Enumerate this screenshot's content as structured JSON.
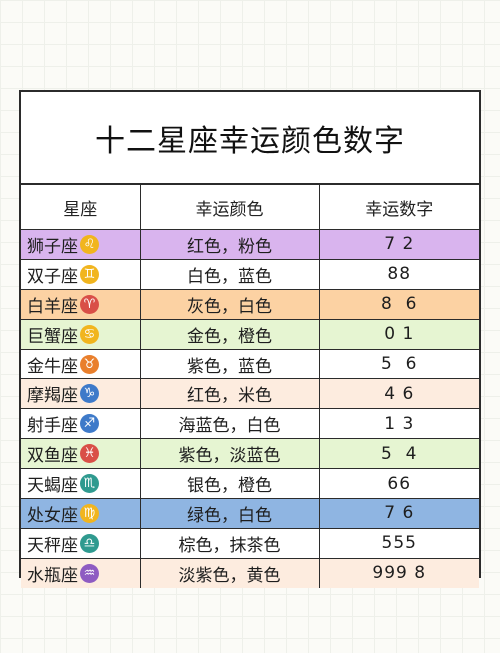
{
  "title": "十二星座幸运颜色数字",
  "headers": [
    "星座",
    "幸运颜色",
    "幸运数字"
  ],
  "rows": [
    {
      "sign": "狮子座",
      "symbol": "♌",
      "icon": "leo-icon",
      "icon_color": "#f1b51e",
      "colors": "红色，粉色",
      "number": "7 2",
      "bg": "#d9b4ee"
    },
    {
      "sign": "双子座",
      "symbol": "♊",
      "icon": "gemini-icon",
      "icon_color": "#f1b51e",
      "colors": "白色，蓝色",
      "number": "88",
      "bg": "#ffffff"
    },
    {
      "sign": "白羊座",
      "symbol": "♈",
      "icon": "aries-icon",
      "icon_color": "#d94f47",
      "colors": "灰色，白色",
      "number": "8  6",
      "bg": "#fcd2a3"
    },
    {
      "sign": "巨蟹座",
      "symbol": "♋",
      "icon": "cancer-icon",
      "icon_color": "#f1b51e",
      "colors": "金色，橙色",
      "number": "0 1",
      "bg": "#e6f5d2"
    },
    {
      "sign": "金牛座",
      "symbol": "♉",
      "icon": "taurus-icon",
      "icon_color": "#e97f2c",
      "colors": "紫色，蓝色",
      "number": "5  6",
      "bg": "#ffffff"
    },
    {
      "sign": "摩羯座",
      "symbol": "♑",
      "icon": "capricorn-icon",
      "icon_color": "#3e7ac9",
      "colors": "红色，米色",
      "number": "4 6",
      "bg": "#fdecdf"
    },
    {
      "sign": "射手座",
      "symbol": "♐",
      "icon": "sagittarius-icon",
      "icon_color": "#3e7ac9",
      "colors": "海蓝色，白色",
      "number": "1 3",
      "bg": "#ffffff"
    },
    {
      "sign": "双鱼座",
      "symbol": "♓",
      "icon": "pisces-icon",
      "icon_color": "#d94f47",
      "colors": "紫色，淡蓝色",
      "number": "5  4",
      "bg": "#e6f5d2"
    },
    {
      "sign": "天蝎座",
      "symbol": "♏",
      "icon": "scorpio-icon",
      "icon_color": "#2f9a8f",
      "colors": "银色，橙色",
      "number": "66",
      "bg": "#ffffff"
    },
    {
      "sign": "处女座",
      "symbol": "♍",
      "icon": "virgo-icon",
      "icon_color": "#f1b51e",
      "colors": "绿色，白色",
      "number": "7 6",
      "bg": "#8fb5e2"
    },
    {
      "sign": "天秤座",
      "symbol": "♎",
      "icon": "libra-icon",
      "icon_color": "#2f9a8f",
      "colors": "棕色，抹茶色",
      "number": "555",
      "bg": "#ffffff"
    },
    {
      "sign": "水瓶座",
      "symbol": "♒",
      "icon": "aquarius-icon",
      "icon_color": "#8e5bc2",
      "colors": "淡紫色，黄色",
      "number": "999 8",
      "bg": "#fdecdf"
    }
  ]
}
